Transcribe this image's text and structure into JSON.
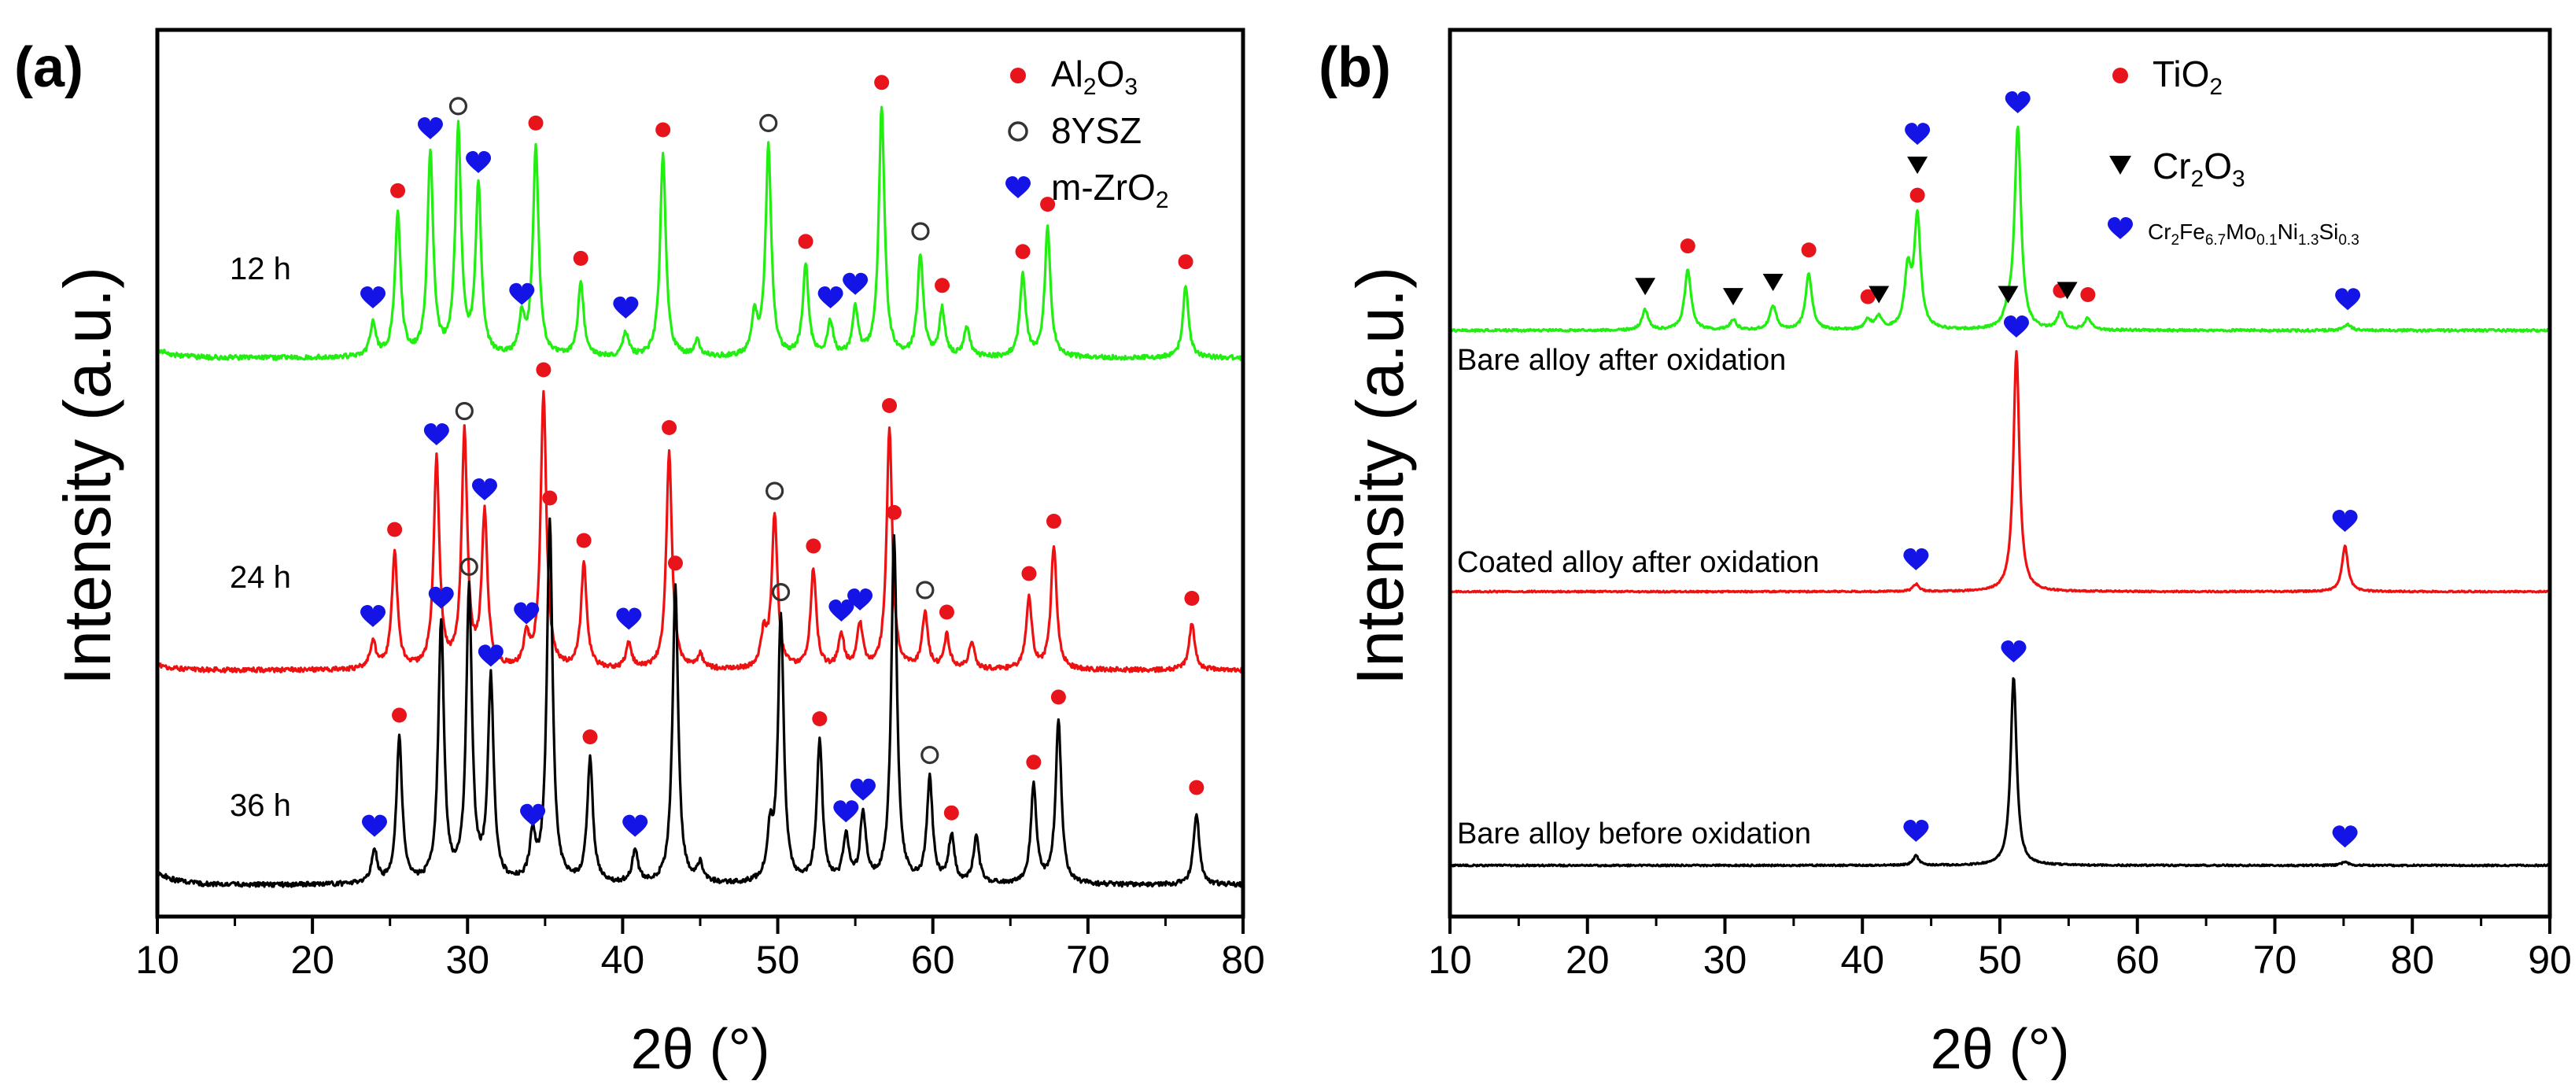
{
  "panels": [
    {
      "id": "a",
      "panel_label": "(a)",
      "xlabel": "2θ (°)",
      "ylabel": "Intensity (a.u.)",
      "xlim": [
        10,
        80
      ],
      "xticks": [
        10,
        20,
        30,
        40,
        50,
        60,
        70,
        80
      ],
      "legend": [
        {
          "marker": "dot",
          "text": "Al",
          "sub": "2",
          "text2": "O",
          "sub2": "3",
          "color": "#e8141b"
        },
        {
          "marker": "circle",
          "text": "8YSZ",
          "color": "#333333"
        },
        {
          "marker": "heart",
          "text": "m-ZrO",
          "sub": "2",
          "color": "#1414e6"
        }
      ],
      "traces": [
        {
          "label": "12 h",
          "color": "#22ee11"
        },
        {
          "label": "24 h",
          "color": "#ee1111"
        },
        {
          "label": "36 h",
          "color": "#000000"
        }
      ]
    },
    {
      "id": "b",
      "panel_label": "(b)",
      "xlabel": "2θ (°)",
      "ylabel": "Intensity (a.u.)",
      "xlim": [
        10,
        90
      ],
      "xticks": [
        10,
        20,
        30,
        40,
        50,
        60,
        70,
        80,
        90
      ],
      "legend": [
        {
          "marker": "dot",
          "text": "TiO",
          "sub": "2",
          "color": "#e8141b"
        },
        {
          "marker": "triangle",
          "text": "Cr",
          "sub": "2",
          "text2": "O",
          "sub2": "3",
          "color": "#000000"
        },
        {
          "marker": "heart",
          "text": "Cr",
          "sub": "2",
          "text2": "Fe",
          "sub2": "6.7",
          "text3": "Mo",
          "sub3": "0.1",
          "text4": "Ni",
          "sub4": "1.3",
          "text5": "Si",
          "sub5": "0.3",
          "color": "#1414e6"
        }
      ],
      "traces": [
        {
          "label": "Bare alloy after oxidation",
          "color": "#22ee11"
        },
        {
          "label": "Coated alloy after oxidation",
          "color": "#ee1111"
        },
        {
          "label": "Bare alloy before oxidation",
          "color": "#000000"
        }
      ]
    }
  ],
  "chart_data": [
    {
      "type": "line",
      "title": "(a)",
      "xlabel": "2θ (°)",
      "ylabel": "Intensity (a.u.)",
      "xlim": [
        10,
        80
      ],
      "grid": false,
      "legend_position": "top-right",
      "series": [
        {
          "name": "12 h",
          "color": "#22ee11",
          "baseline": 0.2,
          "peaks": [
            [
              23.9,
              0.1
            ],
            [
              25.5,
              0.42
            ],
            [
              27.6,
              0.6
            ],
            [
              29.4,
              0.67
            ],
            [
              30.7,
              0.5
            ],
            [
              33.5,
              0.11
            ],
            [
              34.4,
              0.62
            ],
            [
              37.3,
              0.22
            ],
            [
              40.2,
              0.07
            ],
            [
              42.6,
              0.6
            ],
            [
              44.8,
              0.05
            ],
            [
              48.5,
              0.12
            ],
            [
              49.4,
              0.62
            ],
            [
              51.8,
              0.27
            ],
            [
              53.4,
              0.1
            ],
            [
              55.0,
              0.14
            ],
            [
              56.7,
              0.74
            ],
            [
              59.2,
              0.3
            ],
            [
              60.6,
              0.14
            ],
            [
              62.2,
              0.09
            ],
            [
              65.8,
              0.24
            ],
            [
              67.4,
              0.38
            ],
            [
              76.3,
              0.21
            ]
          ]
        },
        {
          "name": "24 h",
          "color": "#ee1111",
          "baseline": 0.17,
          "peaks": [
            [
              23.9,
              0.1
            ],
            [
              25.3,
              0.42
            ],
            [
              28.0,
              0.76
            ],
            [
              29.8,
              0.85
            ],
            [
              31.1,
              0.56
            ],
            [
              33.8,
              0.11
            ],
            [
              34.9,
              1.0
            ],
            [
              37.5,
              0.38
            ],
            [
              40.4,
              0.09
            ],
            [
              43.0,
              0.79
            ],
            [
              45.0,
              0.05
            ],
            [
              49.1,
              0.12
            ],
            [
              49.8,
              0.56
            ],
            [
              52.3,
              0.36
            ],
            [
              54.1,
              0.12
            ],
            [
              55.3,
              0.16
            ],
            [
              57.2,
              0.87
            ],
            [
              59.5,
              0.2
            ],
            [
              60.9,
              0.12
            ],
            [
              62.5,
              0.1
            ],
            [
              66.2,
              0.26
            ],
            [
              67.8,
              0.45
            ],
            [
              76.7,
              0.17
            ]
          ]
        },
        {
          "name": "36 h",
          "color": "#000000",
          "baseline": 0.3,
          "peaks": [
            [
              24.0,
              0.09
            ],
            [
              25.6,
              0.4
            ],
            [
              28.3,
              0.72
            ],
            [
              30.1,
              0.81
            ],
            [
              31.5,
              0.56
            ],
            [
              34.2,
              0.12
            ],
            [
              35.3,
              1.0
            ],
            [
              37.9,
              0.34
            ],
            [
              40.8,
              0.09
            ],
            [
              43.4,
              0.82
            ],
            [
              45.0,
              0.05
            ],
            [
              49.5,
              0.13
            ],
            [
              50.2,
              0.74
            ],
            [
              52.7,
              0.39
            ],
            [
              54.4,
              0.13
            ],
            [
              55.5,
              0.19
            ],
            [
              57.5,
              0.96
            ],
            [
              59.8,
              0.29
            ],
            [
              61.2,
              0.13
            ],
            [
              62.8,
              0.13
            ],
            [
              66.5,
              0.27
            ],
            [
              68.1,
              0.45
            ],
            [
              77.0,
              0.2
            ]
          ]
        }
      ],
      "markers": [
        {
          "series": "12 h",
          "Al2O3": [
            25.5,
            34.4,
            37.3,
            42.6,
            51.8,
            56.7,
            60.6,
            65.8,
            67.4,
            76.3
          ],
          "8YSZ": [
            29.4,
            49.4,
            59.2
          ],
          "m-ZrO2": [
            23.9,
            27.6,
            30.7,
            33.5,
            40.2,
            53.4,
            55.0
          ]
        },
        {
          "series": "24 h",
          "Al2O3": [
            25.3,
            34.9,
            37.5,
            43.0,
            52.3,
            57.2,
            60.9,
            66.2,
            67.8,
            76.7
          ],
          "8YSZ": [
            29.8,
            49.8,
            59.5
          ],
          "m-ZrO2": [
            23.9,
            28.0,
            31.1,
            33.8,
            40.4,
            54.1,
            55.3
          ]
        },
        {
          "series": "36 h",
          "Al2O3": [
            25.6,
            35.3,
            37.9,
            43.4,
            52.7,
            57.5,
            61.2,
            66.5,
            68.1,
            77.0
          ],
          "8YSZ": [
            30.1,
            50.2,
            59.8
          ],
          "m-ZrO2": [
            24.0,
            28.3,
            31.5,
            34.2,
            40.8,
            54.4,
            55.5
          ]
        }
      ]
    },
    {
      "type": "line",
      "title": "(b)",
      "xlabel": "2θ (°)",
      "ylabel": "Intensity (a.u.)",
      "xlim": [
        10,
        90
      ],
      "grid": false,
      "legend_position": "top-right",
      "series": [
        {
          "name": "Bare alloy after oxidation",
          "color": "#22ee11",
          "baseline": 0.0,
          "peaks": [
            [
              24.2,
              0.1
            ],
            [
              27.3,
              0.3
            ],
            [
              30.6,
              0.05
            ],
            [
              33.5,
              0.12
            ],
            [
              36.1,
              0.28
            ],
            [
              40.4,
              0.05
            ],
            [
              41.2,
              0.06
            ],
            [
              43.3,
              0.28
            ],
            [
              44.0,
              0.55
            ],
            [
              50.6,
              0.06
            ],
            [
              51.3,
              1.0
            ],
            [
              54.4,
              0.08
            ],
            [
              56.4,
              0.06
            ],
            [
              75.3,
              0.03
            ]
          ]
        },
        {
          "name": "Coated alloy after oxidation",
          "color": "#ee1111",
          "baseline": 0.0,
          "peaks": [
            [
              43.9,
              0.03
            ],
            [
              51.2,
              1.0
            ],
            [
              75.1,
              0.19
            ]
          ]
        },
        {
          "name": "Bare alloy before oxidation",
          "color": "#000000",
          "baseline": 0.0,
          "peaks": [
            [
              43.9,
              0.05
            ],
            [
              51.0,
              1.0
            ],
            [
              75.1,
              0.02
            ]
          ]
        }
      ],
      "markers": [
        {
          "series": "Bare alloy after oxidation",
          "TiO2": [
            27.3,
            36.1,
            40.4,
            44.0,
            54.4,
            56.4
          ],
          "Cr2O3": [
            24.2,
            30.6,
            33.5,
            41.2,
            44.0,
            50.6,
            54.9
          ],
          "Cr2Fe6.7Mo0.1Ni1.3Si0.3": [
            44.0,
            51.3,
            75.3
          ]
        },
        {
          "series": "Coated alloy after oxidation",
          "Cr2Fe6.7Mo0.1Ni1.3Si0.3": [
            43.9,
            51.2,
            75.1
          ]
        },
        {
          "series": "Bare alloy before oxidation",
          "Cr2Fe6.7Mo0.1Ni1.3Si0.3": [
            43.9,
            51.0,
            75.1
          ]
        }
      ]
    }
  ]
}
